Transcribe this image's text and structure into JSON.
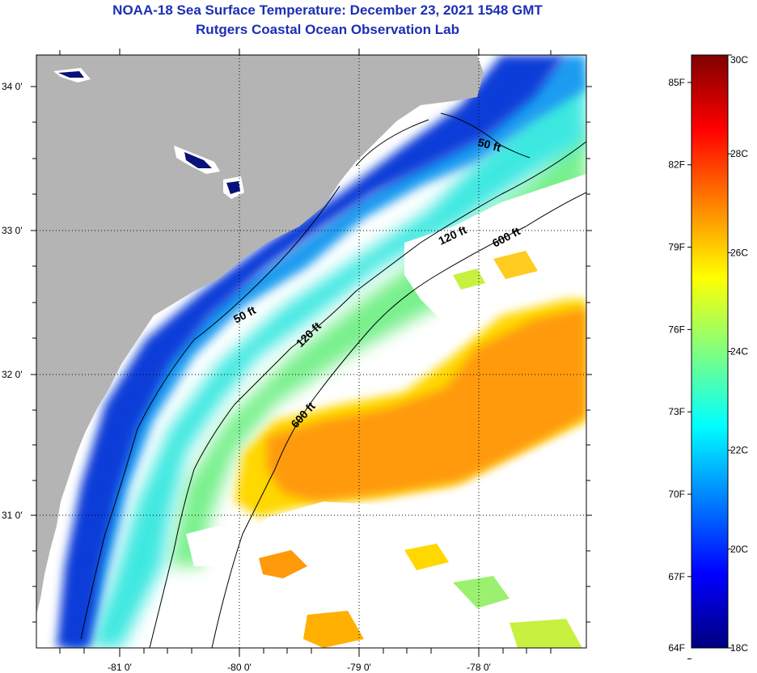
{
  "header": {
    "title": "NOAA-18 Sea Surface Temperature:  December 23, 2021 1548 GMT",
    "subtitle": "Rutgers Coastal Ocean Observation Lab"
  },
  "axes": {
    "longitude_ticks": [
      "-81 0'",
      "-80 0'",
      "-79 0'",
      "-78 0'"
    ],
    "latitude_ticks": [
      "34 0'",
      "33 0'",
      "32 0'",
      "31 0'"
    ]
  },
  "contours": {
    "labels": [
      "50 ft",
      "120 ft",
      "600 ft",
      "50 ft",
      "120 ft",
      "600 ft"
    ]
  },
  "colorbar": {
    "fahrenheit_labels": [
      "85F",
      "82F",
      "79F",
      "76F",
      "73F",
      "70F",
      "67F",
      "64F"
    ],
    "celsius_labels": [
      "30C",
      "28C",
      "26C",
      "24C",
      "22C",
      "20C",
      "18C"
    ],
    "celsius_range": [
      18,
      30
    ],
    "stops": [
      "#00007f",
      "#0000ff",
      "#0080ff",
      "#00ffff",
      "#80ff80",
      "#ffff00",
      "#ff8000",
      "#ff0000",
      "#7f0000"
    ]
  },
  "colors": {
    "land": "#b4b4b4",
    "cloud": "#ffffff",
    "title": "#1c2fb5"
  }
}
